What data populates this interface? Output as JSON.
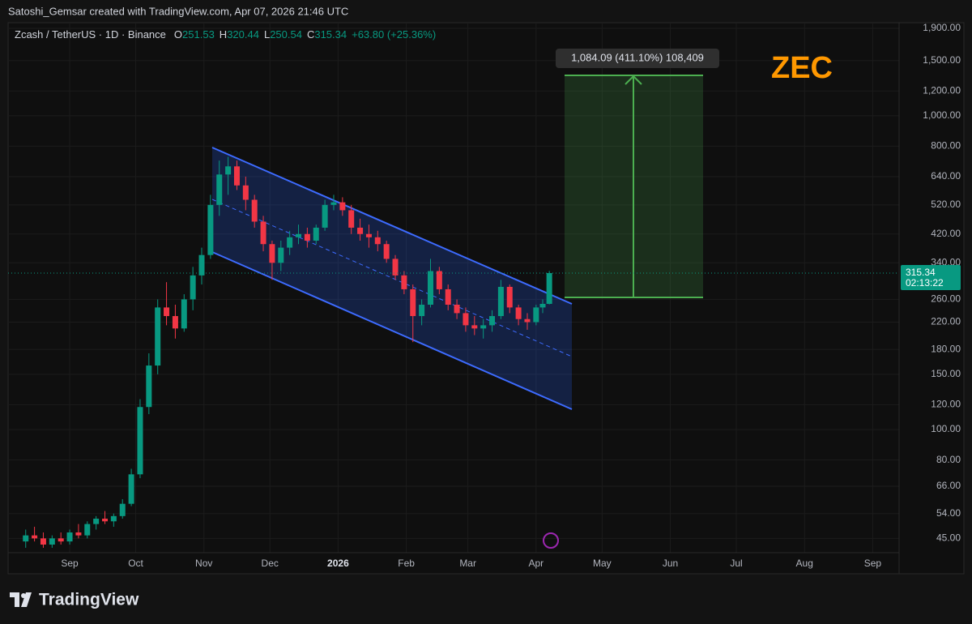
{
  "chart_data": {
    "type": "candlestick",
    "attribution": "Satoshi_Gemsar created with TradingView.com, Apr 07, 2026 21:46 UTC",
    "title": "Zcash / TetherUS · 1D · Binance",
    "ohlc_letters": [
      "O",
      "H",
      "L",
      "C"
    ],
    "change_label": "+63.80 (+25.36%)",
    "x": [
      "2025-08-12",
      "2025-08-16",
      "2025-08-20",
      "2025-08-24",
      "2025-08-28",
      "2025-09-01",
      "2025-09-05",
      "2025-09-09",
      "2025-09-13",
      "2025-09-17",
      "2025-09-21",
      "2025-09-25",
      "2025-09-29",
      "2025-10-03",
      "2025-10-07",
      "2025-10-11",
      "2025-10-15",
      "2025-10-19",
      "2025-10-23",
      "2025-10-27",
      "2025-10-31",
      "2025-11-04",
      "2025-11-08",
      "2025-11-12",
      "2025-11-16",
      "2025-11-20",
      "2025-11-24",
      "2025-11-28",
      "2025-12-02",
      "2025-12-06",
      "2025-12-10",
      "2025-12-14",
      "2025-12-18",
      "2025-12-22",
      "2025-12-26",
      "2025-12-30",
      "2026-01-03",
      "2026-01-07",
      "2026-01-11",
      "2026-01-15",
      "2026-01-19",
      "2026-01-23",
      "2026-01-27",
      "2026-01-31",
      "2026-02-04",
      "2026-02-08",
      "2026-02-12",
      "2026-02-16",
      "2026-02-20",
      "2026-02-24",
      "2026-02-28",
      "2026-03-04",
      "2026-03-08",
      "2026-03-12",
      "2026-03-16",
      "2026-03-20",
      "2026-03-24",
      "2026-03-28",
      "2026-04-01",
      "2026-04-04",
      "2026-04-07"
    ],
    "open": [
      44,
      46,
      45,
      43,
      45,
      44,
      47,
      46,
      50,
      52,
      51,
      53,
      58,
      72,
      118,
      160,
      245,
      230,
      210,
      260,
      310,
      360,
      520,
      650,
      690,
      600,
      540,
      460,
      390,
      340,
      380,
      410,
      420,
      400,
      440,
      520,
      530,
      500,
      440,
      420,
      410,
      390,
      350,
      310,
      280,
      230,
      250,
      320,
      280,
      250,
      235,
      215,
      210,
      215,
      230,
      285,
      245,
      225,
      220,
      245,
      251.53
    ],
    "high": [
      48,
      49,
      47,
      46,
      47,
      48,
      50,
      51,
      53,
      55,
      54,
      60,
      75,
      125,
      175,
      260,
      295,
      250,
      270,
      330,
      380,
      560,
      720,
      740,
      720,
      640,
      560,
      480,
      400,
      400,
      430,
      450,
      440,
      450,
      540,
      560,
      550,
      520,
      470,
      450,
      430,
      400,
      360,
      320,
      290,
      260,
      350,
      330,
      290,
      260,
      245,
      230,
      225,
      240,
      300,
      290,
      250,
      235,
      250,
      260,
      320.44
    ],
    "low": [
      42,
      44,
      42,
      42,
      43,
      43,
      45,
      45,
      48,
      50,
      49,
      52,
      57,
      70,
      112,
      150,
      215,
      195,
      205,
      240,
      290,
      350,
      480,
      560,
      580,
      500,
      440,
      370,
      300,
      320,
      360,
      390,
      380,
      390,
      430,
      500,
      480,
      420,
      400,
      380,
      370,
      340,
      300,
      270,
      190,
      215,
      245,
      270,
      240,
      225,
      205,
      200,
      195,
      205,
      225,
      235,
      215,
      208,
      215,
      235,
      250.54
    ],
    "close": [
      46,
      45,
      43,
      45,
      44,
      47,
      46,
      50,
      52,
      51,
      53,
      58,
      72,
      118,
      160,
      245,
      230,
      210,
      260,
      310,
      360,
      520,
      650,
      690,
      600,
      540,
      460,
      390,
      340,
      380,
      410,
      420,
      400,
      440,
      520,
      530,
      500,
      440,
      420,
      410,
      390,
      350,
      310,
      280,
      230,
      250,
      320,
      280,
      250,
      235,
      215,
      210,
      215,
      230,
      285,
      245,
      225,
      220,
      245,
      251.53,
      315.34
    ],
    "up_color": "#089981",
    "down_color": "#f23645",
    "log_scale": true,
    "grid": true,
    "ylim": [
      41,
      1957
    ],
    "yticks": [
      {
        "value": 45,
        "label": "45.00"
      },
      {
        "value": 54,
        "label": "54.00"
      },
      {
        "value": 66,
        "label": "66.00"
      },
      {
        "value": 80,
        "label": "80.00"
      },
      {
        "value": 100,
        "label": "100.00"
      },
      {
        "value": 120,
        "label": "120.00"
      },
      {
        "value": 150,
        "label": "150.00"
      },
      {
        "value": 180,
        "label": "180.00"
      },
      {
        "value": 220,
        "label": "220.00"
      },
      {
        "value": 260,
        "label": "260.00"
      },
      {
        "value": 340,
        "label": "340.00"
      },
      {
        "value": 420,
        "label": "420.00"
      },
      {
        "value": 520,
        "label": "520.00"
      },
      {
        "value": 640,
        "label": "640.00"
      },
      {
        "value": 800,
        "label": "800.00"
      },
      {
        "value": 1000,
        "label": "1,000.00"
      },
      {
        "value": 1200,
        "label": "1,200.00"
      },
      {
        "value": 1500,
        "label": "1,500.00"
      },
      {
        "value": 1900,
        "label": "1,900.00"
      }
    ],
    "xlim": [
      "2025-08-04",
      "2026-09-13"
    ],
    "xticks": [
      {
        "value": "2025-09-01",
        "label": "Sep"
      },
      {
        "value": "2025-10-01",
        "label": "Oct"
      },
      {
        "value": "2025-11-01",
        "label": "Nov"
      },
      {
        "value": "2025-12-01",
        "label": "Dec"
      },
      {
        "value": "2026-01-01",
        "label": "2026"
      },
      {
        "value": "2026-02-01",
        "label": "Feb"
      },
      {
        "value": "2026-03-01",
        "label": "Mar"
      },
      {
        "value": "2026-04-01",
        "label": "Apr"
      },
      {
        "value": "2026-05-01",
        "label": "May"
      },
      {
        "value": "2026-06-01",
        "label": "Jun"
      },
      {
        "value": "2026-07-01",
        "label": "Jul"
      },
      {
        "value": "2026-08-01",
        "label": "Aug"
      },
      {
        "value": "2026-09-01",
        "label": "Sep"
      }
    ],
    "countdown": "02:13:22",
    "measure_label": "1,084.09 (411.10%) 108,409",
    "annotation": "ZEC",
    "brand": "TradingView"
  }
}
